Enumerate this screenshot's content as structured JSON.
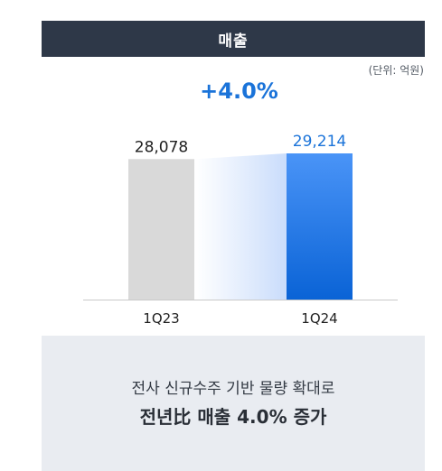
{
  "header": {
    "title": "매출"
  },
  "unit_label": "(단위: 억원)",
  "growth_label": "+4.0%",
  "summary": {
    "line1": "전사 신규수주 기반 물량 확대로",
    "line2": "전년比 매출 4.0% 증가"
  },
  "colors": {
    "accent": "#1a73d9",
    "prev_bar": "#d9d9d9",
    "curr_bar": "#1c72e0",
    "header_bg": "#2e3848"
  },
  "chart_data": {
    "type": "bar",
    "title": "",
    "categories": [
      "1Q23",
      "1Q24"
    ],
    "values": [
      28078,
      29214
    ],
    "value_labels": [
      "28,078",
      "29,214"
    ],
    "xlabel": "",
    "ylabel": "",
    "grid": false,
    "legend": "none"
  }
}
